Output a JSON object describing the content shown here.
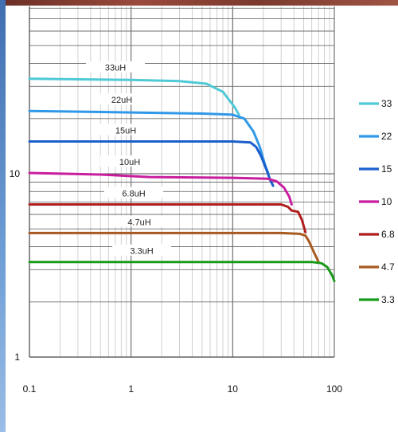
{
  "chart_data": {
    "type": "line",
    "title": "",
    "xlabel": "",
    "ylabel": "",
    "x_scale": "log",
    "y_scale": "log",
    "xlim": [
      0.1,
      100
    ],
    "ylim": [
      1,
      80
    ],
    "x_ticks": [
      "0.1",
      "1",
      "10",
      "100"
    ],
    "y_ticks": [
      "1",
      "10"
    ],
    "grid": true,
    "legend_position": "right",
    "series": [
      {
        "name": "33",
        "label": "33uH",
        "color": "#4fc9d6",
        "points": [
          [
            0.1,
            33
          ],
          [
            1,
            32.5
          ],
          [
            3,
            32
          ],
          [
            5.5,
            31
          ],
          [
            8,
            28
          ],
          [
            10.5,
            23
          ],
          [
            11.5,
            21
          ]
        ]
      },
      {
        "name": "22",
        "label": "22uH",
        "color": "#2f98e8",
        "points": [
          [
            0.1,
            22
          ],
          [
            1,
            21.6
          ],
          [
            5,
            21.3
          ],
          [
            10,
            21
          ],
          [
            13,
            20
          ],
          [
            16,
            17
          ],
          [
            18.5,
            14
          ],
          [
            21,
            11
          ],
          [
            22.5,
            10
          ]
        ]
      },
      {
        "name": "15",
        "label": "15uH",
        "color": "#1c5fcc",
        "points": [
          [
            0.1,
            15
          ],
          [
            1,
            15
          ],
          [
            10,
            15
          ],
          [
            15,
            14.8
          ],
          [
            17,
            14
          ],
          [
            19,
            12.5
          ],
          [
            21.5,
            10.5
          ],
          [
            23.5,
            9.2
          ],
          [
            25,
            8.6
          ]
        ]
      },
      {
        "name": "10",
        "label": "10uH",
        "color": "#c81e9e",
        "points": [
          [
            0.1,
            10.1
          ],
          [
            0.5,
            9.9
          ],
          [
            1.5,
            9.6
          ],
          [
            10,
            9.5
          ],
          [
            22,
            9.4
          ],
          [
            27,
            9.1
          ],
          [
            32,
            8.4
          ],
          [
            36,
            7.5
          ],
          [
            38,
            6.8
          ]
        ]
      },
      {
        "name": "6.8",
        "label": "6.8uH",
        "color": "#b01c1c",
        "points": [
          [
            0.1,
            6.8
          ],
          [
            1,
            6.8
          ],
          [
            10,
            6.8
          ],
          [
            30,
            6.8
          ],
          [
            35,
            6.6
          ],
          [
            38,
            6.3
          ],
          [
            44,
            6.2
          ],
          [
            48,
            5.6
          ],
          [
            52,
            4.8
          ]
        ]
      },
      {
        "name": "4.7",
        "label": "4.7uH",
        "color": "#a85a20",
        "points": [
          [
            0.1,
            4.75
          ],
          [
            1,
            4.75
          ],
          [
            10,
            4.75
          ],
          [
            30,
            4.75
          ],
          [
            46,
            4.7
          ],
          [
            52,
            4.6
          ],
          [
            56,
            4.3
          ],
          [
            62,
            3.8
          ],
          [
            70,
            3.3
          ]
        ]
      },
      {
        "name": "3.3",
        "label": "3.3uH",
        "color": "#1a9a1a",
        "points": [
          [
            0.1,
            3.3
          ],
          [
            1,
            3.3
          ],
          [
            10,
            3.3
          ],
          [
            30,
            3.3
          ],
          [
            60,
            3.3
          ],
          [
            75,
            3.25
          ],
          [
            85,
            3.1
          ],
          [
            95,
            2.8
          ],
          [
            100,
            2.6
          ]
        ]
      }
    ],
    "legend": [
      "33",
      "22",
      "15",
      "10",
      "6.8",
      "4.7",
      "3.3"
    ]
  }
}
